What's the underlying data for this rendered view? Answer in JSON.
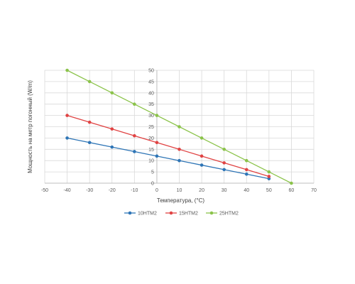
{
  "chart_data": {
    "type": "line",
    "title": "",
    "xlabel": "Температура, (°C)",
    "ylabel": "Мощность на метр погонный (W/m)",
    "xlim": [
      -50,
      70
    ],
    "ylim": [
      0,
      50
    ],
    "x_ticks": [
      -50,
      -40,
      -30,
      -20,
      -10,
      0,
      10,
      20,
      30,
      40,
      50,
      60,
      70
    ],
    "y_ticks": [
      0,
      5,
      10,
      15,
      20,
      25,
      30,
      35,
      40,
      45,
      50
    ],
    "grid": true,
    "legend_position": "bottom",
    "series": [
      {
        "name": "10НТМ2",
        "color": "#2E75B6",
        "x": [
          -40,
          -30,
          -20,
          -10,
          0,
          10,
          20,
          30,
          40,
          50
        ],
        "y": [
          20,
          18,
          16,
          14,
          12,
          10,
          8,
          6,
          4,
          2
        ]
      },
      {
        "name": "15НТМ2",
        "color": "#E04343",
        "x": [
          -40,
          -30,
          -20,
          -10,
          0,
          10,
          20,
          30,
          40,
          50
        ],
        "y": [
          30,
          27,
          24,
          21,
          18,
          15,
          12,
          9,
          6,
          3
        ]
      },
      {
        "name": "25НТМ2",
        "color": "#8BC34A",
        "x": [
          -40,
          -30,
          -20,
          -10,
          0,
          10,
          20,
          30,
          40,
          50,
          60
        ],
        "y": [
          50,
          45,
          40,
          35,
          30,
          25,
          20,
          15,
          10,
          5,
          0
        ]
      }
    ]
  }
}
